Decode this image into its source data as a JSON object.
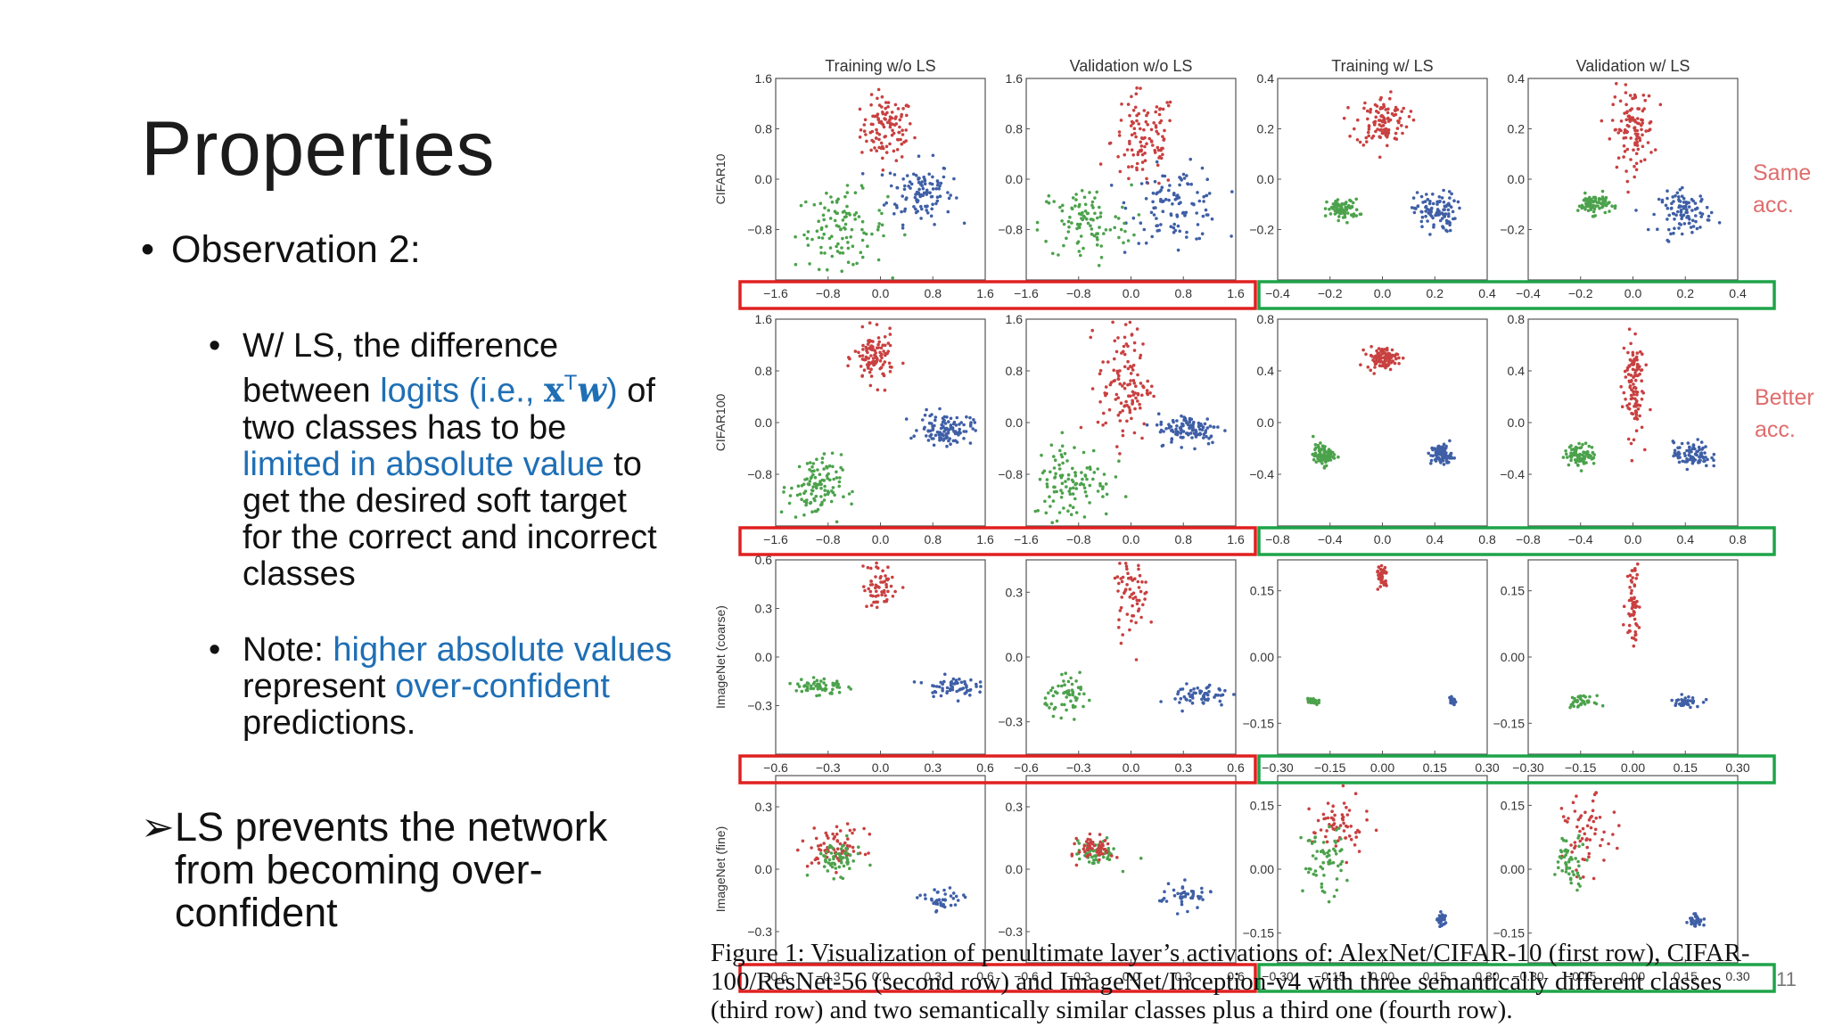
{
  "slide": {
    "title": "Properties",
    "bullet1": "Observation 2:",
    "sub1_a": "W/ LS, the difference between ",
    "sub1_b": "logits (i.e., ",
    "sub1_math_x": "x",
    "sub1_math_T": "T",
    "sub1_math_w": "w",
    "sub1_c": ")",
    "sub1_d": " of two classes has to be ",
    "sub1_e": "limited in absolute value",
    "sub1_f": " to get the desired soft target for the correct and incorrect classes",
    "sub2_a": "Note: ",
    "sub2_b": "higher absolute values",
    "sub2_c": " represent ",
    "sub2_d": "over-confident",
    "sub2_e": " predictions.",
    "conclusion": "LS prevents the network from becoming over-confident",
    "side_label_1": [
      "Same",
      "acc."
    ],
    "side_label_2": [
      "Better",
      "acc."
    ],
    "slide_number": "11",
    "caption": "Figure 1: Visualization of penultimate layer’s activations of: AlexNet/CIFAR-10 (first row), CIFAR-100/ResNet-56 (second row) and ImageNet/Inception-v4 with three semantically different classes (third row) and two semantically similar classes plus a third one (fourth row)."
  },
  "chart_data": {
    "type": "scatter",
    "columns": [
      "Training w/o LS",
      "Validation w/o LS",
      "Training w/ LS",
      "Validation w/ LS"
    ],
    "rows": [
      "CIFAR10",
      "CIFAR100",
      "ImageNet (coarse)",
      "ImageNet (fine)"
    ],
    "series_colors": {
      "class_red": "#c94040",
      "class_blue": "#3f5fa6",
      "class_green": "#4ca24c"
    },
    "highlight_colors": {
      "without_ls": "#e02020",
      "with_ls": "#1ea448"
    },
    "panels": [
      {
        "row": 0,
        "col": 0,
        "ticks_x": [
          "−1.6",
          "−0.8",
          "0.0",
          "0.8",
          "1.6"
        ],
        "ticks_y": [
          "1.6",
          "0.8",
          "0.0",
          "−0.8"
        ],
        "xlim": [
          -1.6,
          1.6
        ],
        "ylim": [
          -1.6,
          1.6
        ],
        "clusters": [
          {
            "color": "red",
            "cx": 0.1,
            "cy": 0.8,
            "sx": 0.2,
            "sy": 0.25,
            "n": 110
          },
          {
            "color": "blue",
            "cx": 0.6,
            "cy": -0.2,
            "sx": 0.25,
            "sy": 0.25,
            "n": 110
          },
          {
            "color": "green",
            "cx": -0.6,
            "cy": -0.8,
            "sx": 0.35,
            "sy": 0.3,
            "n": 110
          }
        ]
      },
      {
        "row": 0,
        "col": 1,
        "ticks_x": [
          "−1.6",
          "−0.8",
          "0.0",
          "0.8",
          "1.6"
        ],
        "ticks_y": [
          "1.6",
          "0.8",
          "0.0",
          "−0.8"
        ],
        "xlim": [
          -1.6,
          1.6
        ],
        "ylim": [
          -1.6,
          1.6
        ],
        "clusters": [
          {
            "color": "red",
            "cx": 0.2,
            "cy": 0.6,
            "sx": 0.25,
            "sy": 0.4,
            "n": 110
          },
          {
            "color": "blue",
            "cx": 0.7,
            "cy": -0.4,
            "sx": 0.35,
            "sy": 0.3,
            "n": 110
          },
          {
            "color": "green",
            "cx": -0.7,
            "cy": -0.7,
            "sx": 0.35,
            "sy": 0.3,
            "n": 100
          }
        ]
      },
      {
        "row": 0,
        "col": 2,
        "ticks_x": [
          "−0.4",
          "−0.2",
          "0.0",
          "0.2",
          "0.4"
        ],
        "ticks_y": [
          "0.4",
          "0.2",
          "0.0",
          "−0.2"
        ],
        "xlim": [
          -0.4,
          0.4
        ],
        "ylim": [
          -0.4,
          0.4
        ],
        "clusters": [
          {
            "color": "red",
            "cx": 0.0,
            "cy": 0.23,
            "sx": 0.05,
            "sy": 0.05,
            "n": 110
          },
          {
            "color": "blue",
            "cx": 0.2,
            "cy": -0.13,
            "sx": 0.04,
            "sy": 0.04,
            "n": 100
          },
          {
            "color": "green",
            "cx": -0.15,
            "cy": -0.12,
            "sx": 0.03,
            "sy": 0.02,
            "n": 80
          }
        ]
      },
      {
        "row": 0,
        "col": 3,
        "ticks_x": [
          "−0.4",
          "−0.2",
          "0.0",
          "0.2",
          "0.4"
        ],
        "ticks_y": [
          "0.4",
          "0.2",
          "0.0",
          "−0.2"
        ],
        "xlim": [
          -0.4,
          0.4
        ],
        "ylim": [
          -0.4,
          0.4
        ],
        "clusters": [
          {
            "color": "red",
            "cx": 0.0,
            "cy": 0.2,
            "sx": 0.04,
            "sy": 0.08,
            "n": 110
          },
          {
            "color": "blue",
            "cx": 0.2,
            "cy": -0.13,
            "sx": 0.05,
            "sy": 0.04,
            "n": 100
          },
          {
            "color": "green",
            "cx": -0.15,
            "cy": -0.1,
            "sx": 0.03,
            "sy": 0.02,
            "n": 80
          }
        ]
      },
      {
        "row": 1,
        "col": 0,
        "ticks_x": [
          "−1.6",
          "−0.8",
          "0.0",
          "0.8",
          "1.6"
        ],
        "ticks_y": [
          "1.6",
          "0.8",
          "0.0",
          "−0.8"
        ],
        "xlim": [
          -1.6,
          1.6
        ],
        "ylim": [
          -1.6,
          1.6
        ],
        "clusters": [
          {
            "color": "red",
            "cx": -0.1,
            "cy": 1.0,
            "sx": 0.15,
            "sy": 0.2,
            "n": 110
          },
          {
            "color": "blue",
            "cx": 1.0,
            "cy": -0.1,
            "sx": 0.2,
            "sy": 0.12,
            "n": 110
          },
          {
            "color": "green",
            "cx": -1.0,
            "cy": -1.0,
            "sx": 0.2,
            "sy": 0.25,
            "n": 110
          }
        ]
      },
      {
        "row": 1,
        "col": 1,
        "ticks_x": [
          "−1.6",
          "−0.8",
          "0.0",
          "0.8",
          "1.6"
        ],
        "ticks_y": [
          "1.6",
          "0.8",
          "0.0",
          "−0.8"
        ],
        "xlim": [
          -1.6,
          1.6
        ],
        "ylim": [
          -1.6,
          1.6
        ],
        "clusters": [
          {
            "color": "red",
            "cx": -0.1,
            "cy": 0.6,
            "sx": 0.2,
            "sy": 0.45,
            "n": 120
          },
          {
            "color": "blue",
            "cx": 0.9,
            "cy": -0.1,
            "sx": 0.25,
            "sy": 0.12,
            "n": 110
          },
          {
            "color": "green",
            "cx": -0.9,
            "cy": -0.9,
            "sx": 0.3,
            "sy": 0.3,
            "n": 110
          }
        ]
      },
      {
        "row": 1,
        "col": 2,
        "ticks_x": [
          "−0.8",
          "−0.4",
          "0.0",
          "0.4",
          "0.8"
        ],
        "ticks_y": [
          "0.8",
          "0.4",
          "0.0",
          "−0.4"
        ],
        "xlim": [
          -0.8,
          0.8
        ],
        "ylim": [
          -0.8,
          0.8
        ],
        "clusters": [
          {
            "color": "red",
            "cx": 0.0,
            "cy": 0.5,
            "sx": 0.06,
            "sy": 0.04,
            "n": 100
          },
          {
            "color": "blue",
            "cx": 0.45,
            "cy": -0.25,
            "sx": 0.04,
            "sy": 0.04,
            "n": 90
          },
          {
            "color": "green",
            "cx": -0.45,
            "cy": -0.25,
            "sx": 0.04,
            "sy": 0.04,
            "n": 90
          }
        ]
      },
      {
        "row": 1,
        "col": 3,
        "ticks_x": [
          "−0.8",
          "−0.4",
          "0.0",
          "0.4",
          "0.8"
        ],
        "ticks_y": [
          "0.8",
          "0.4",
          "0.0",
          "−0.4"
        ],
        "xlim": [
          -0.8,
          0.8
        ],
        "ylim": [
          -0.8,
          0.8
        ],
        "clusters": [
          {
            "color": "red",
            "cx": 0.0,
            "cy": 0.3,
            "sx": 0.04,
            "sy": 0.2,
            "n": 110
          },
          {
            "color": "blue",
            "cx": 0.45,
            "cy": -0.25,
            "sx": 0.07,
            "sy": 0.05,
            "n": 90
          },
          {
            "color": "green",
            "cx": -0.4,
            "cy": -0.25,
            "sx": 0.06,
            "sy": 0.04,
            "n": 90
          }
        ]
      },
      {
        "row": 2,
        "col": 0,
        "ticks_x": [
          "−0.6",
          "−0.3",
          "0.0",
          "0.3",
          "0.6"
        ],
        "ticks_y": [
          "0.6",
          "0.3",
          "0.0",
          "−0.3"
        ],
        "xlim": [
          -0.6,
          0.6
        ],
        "ylim": [
          -0.6,
          0.6
        ],
        "clusters": [
          {
            "color": "red",
            "cx": 0.0,
            "cy": 0.45,
            "sx": 0.05,
            "sy": 0.08,
            "n": 60
          },
          {
            "color": "blue",
            "cx": 0.4,
            "cy": -0.18,
            "sx": 0.07,
            "sy": 0.03,
            "n": 60
          },
          {
            "color": "green",
            "cx": -0.35,
            "cy": -0.18,
            "sx": 0.07,
            "sy": 0.03,
            "n": 60
          }
        ]
      },
      {
        "row": 2,
        "col": 1,
        "ticks_x": [
          "−0.6",
          "−0.3",
          "0.0",
          "0.3",
          "0.6"
        ],
        "ticks_y": [
          "0.3",
          "0.0",
          "−0.3"
        ],
        "xlim": [
          -0.6,
          0.6
        ],
        "ylim": [
          -0.45,
          0.45
        ],
        "clusters": [
          {
            "color": "red",
            "cx": 0.0,
            "cy": 0.3,
            "sx": 0.05,
            "sy": 0.1,
            "n": 70
          },
          {
            "color": "blue",
            "cx": 0.4,
            "cy": -0.18,
            "sx": 0.08,
            "sy": 0.03,
            "n": 60
          },
          {
            "color": "green",
            "cx": -0.35,
            "cy": -0.18,
            "sx": 0.07,
            "sy": 0.04,
            "n": 60
          }
        ]
      },
      {
        "row": 2,
        "col": 2,
        "ticks_x": [
          "−0.30",
          "−0.15",
          "0.00",
          "0.15",
          "0.30"
        ],
        "ticks_y": [
          "0.15",
          "0.00",
          "−0.15"
        ],
        "xlim": [
          -0.3,
          0.3
        ],
        "ylim": [
          -0.22,
          0.22
        ],
        "clusters": [
          {
            "color": "red",
            "cx": 0.0,
            "cy": 0.18,
            "sx": 0.008,
            "sy": 0.015,
            "n": 40
          },
          {
            "color": "blue",
            "cx": 0.2,
            "cy": -0.1,
            "sx": 0.006,
            "sy": 0.004,
            "n": 30
          },
          {
            "color": "green",
            "cx": -0.2,
            "cy": -0.1,
            "sx": 0.008,
            "sy": 0.005,
            "n": 30
          }
        ]
      },
      {
        "row": 2,
        "col": 3,
        "ticks_x": [
          "−0.30",
          "−0.15",
          "0.00",
          "0.15",
          "0.30"
        ],
        "ticks_y": [
          "0.15",
          "0.00",
          "−0.15"
        ],
        "xlim": [
          -0.3,
          0.3
        ],
        "ylim": [
          -0.22,
          0.22
        ],
        "clusters": [
          {
            "color": "red",
            "cx": 0.0,
            "cy": 0.13,
            "sx": 0.01,
            "sy": 0.05,
            "n": 60
          },
          {
            "color": "blue",
            "cx": 0.15,
            "cy": -0.1,
            "sx": 0.02,
            "sy": 0.006,
            "n": 35
          },
          {
            "color": "green",
            "cx": -0.15,
            "cy": -0.1,
            "sx": 0.02,
            "sy": 0.006,
            "n": 35
          }
        ]
      },
      {
        "row": 3,
        "col": 0,
        "ticks_x": [
          "−0.6",
          "−0.3",
          "0.0",
          "0.3",
          "0.6"
        ],
        "ticks_y": [
          "0.3",
          "0.0",
          "−0.3"
        ],
        "xlim": [
          -0.6,
          0.6
        ],
        "ylim": [
          -0.45,
          0.45
        ],
        "clusters": [
          {
            "color": "red",
            "cx": -0.25,
            "cy": 0.1,
            "sx": 0.08,
            "sy": 0.05,
            "n": 70
          },
          {
            "color": "green",
            "cx": -0.25,
            "cy": 0.05,
            "sx": 0.07,
            "sy": 0.04,
            "n": 60
          },
          {
            "color": "blue",
            "cx": 0.35,
            "cy": -0.15,
            "sx": 0.06,
            "sy": 0.03,
            "n": 40
          }
        ]
      },
      {
        "row": 3,
        "col": 1,
        "ticks_x": [
          "−0.6",
          "−0.3",
          "0.0",
          "0.3",
          "0.6"
        ],
        "ticks_y": [
          "0.3",
          "0.0",
          "−0.3"
        ],
        "xlim": [
          -0.6,
          0.6
        ],
        "ylim": [
          -0.45,
          0.45
        ],
        "clusters": [
          {
            "color": "green",
            "cx": -0.2,
            "cy": 0.08,
            "sx": 0.06,
            "sy": 0.03,
            "n": 60
          },
          {
            "color": "red",
            "cx": -0.2,
            "cy": 0.1,
            "sx": 0.05,
            "sy": 0.03,
            "n": 60
          },
          {
            "color": "blue",
            "cx": 0.3,
            "cy": -0.13,
            "sx": 0.08,
            "sy": 0.03,
            "n": 45
          }
        ]
      },
      {
        "row": 3,
        "col": 2,
        "ticks_x": [
          "−0.30",
          "−0.15",
          "0.00",
          "0.15",
          "0.30"
        ],
        "ticks_y": [
          "0.15",
          "0.00",
          "−0.15"
        ],
        "xlim": [
          -0.3,
          0.3
        ],
        "ylim": [
          -0.22,
          0.22
        ],
        "clusters": [
          {
            "color": "red",
            "cx": -0.12,
            "cy": 0.1,
            "sx": 0.04,
            "sy": 0.035,
            "n": 60
          },
          {
            "color": "green",
            "cx": -0.17,
            "cy": 0.02,
            "sx": 0.03,
            "sy": 0.04,
            "n": 60
          },
          {
            "color": "blue",
            "cx": 0.17,
            "cy": -0.12,
            "sx": 0.006,
            "sy": 0.008,
            "n": 30
          }
        ]
      },
      {
        "row": 3,
        "col": 3,
        "ticks_x": [
          "−0.30",
          "−0.15",
          "0.00",
          "0.15",
          "0.30"
        ],
        "ticks_y": [
          "0.15",
          "0.00",
          "−0.15"
        ],
        "xlim": [
          -0.3,
          0.3
        ],
        "ylim": [
          -0.22,
          0.22
        ],
        "clusters": [
          {
            "color": "red",
            "cx": -0.13,
            "cy": 0.08,
            "sx": 0.035,
            "sy": 0.045,
            "n": 60
          },
          {
            "color": "green",
            "cx": -0.18,
            "cy": 0.02,
            "sx": 0.025,
            "sy": 0.03,
            "n": 50
          },
          {
            "color": "blue",
            "cx": 0.18,
            "cy": -0.12,
            "sx": 0.01,
            "sy": 0.008,
            "n": 30
          }
        ]
      }
    ]
  }
}
